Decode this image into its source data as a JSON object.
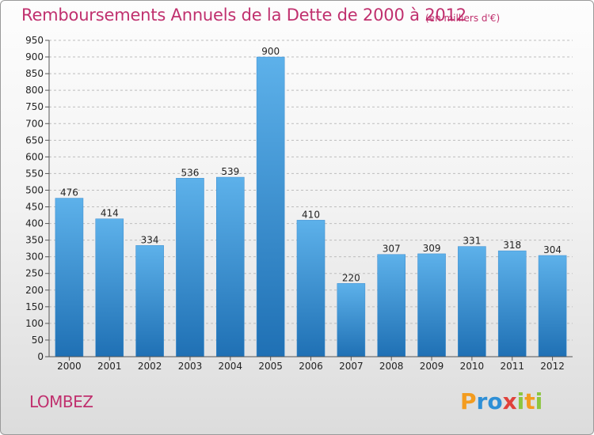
{
  "header": {
    "title": "Remboursements Annuels de la Dette de 2000 à 2012",
    "unit": "(en milliers d'€)"
  },
  "footer": {
    "commune": "LOMBEZ",
    "logo_text": "Proxiti"
  },
  "chart_data": {
    "type": "bar",
    "title": "Remboursements Annuels de la Dette de 2000 à 2012",
    "subtitle": "(en milliers d'€)",
    "xlabel": "",
    "ylabel": "",
    "categories": [
      "2000",
      "2001",
      "2002",
      "2003",
      "2004",
      "2005",
      "2006",
      "2007",
      "2008",
      "2009",
      "2010",
      "2011",
      "2012"
    ],
    "values": [
      476,
      414,
      334,
      536,
      539,
      900,
      410,
      220,
      307,
      309,
      331,
      318,
      304
    ],
    "ylim": [
      0,
      950
    ],
    "ytick_step": 50,
    "grid": "horizontal-dashed",
    "legend": "none",
    "colors": {
      "bar_light": "#5aaee8",
      "bar_dark": "#1f6fb2",
      "title": "#c0306e"
    }
  }
}
